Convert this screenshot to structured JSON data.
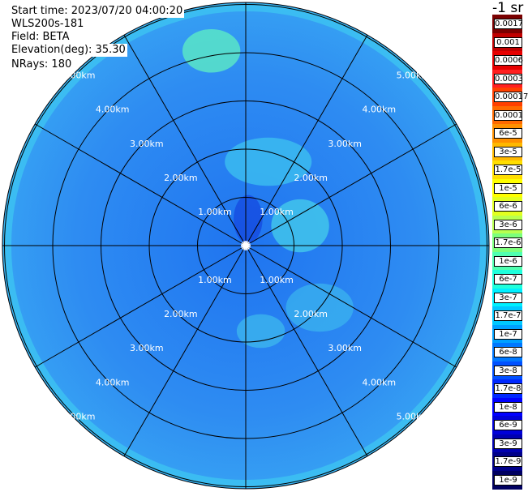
{
  "info": {
    "start_time": "Start time: 2023/07/20 04:00:20",
    "device": "WLS200s-181",
    "field": "Field: BETA",
    "elevation": "Elevation(deg): 35.30",
    "nrays": "NRays: 180"
  },
  "chart_data": {
    "type": "polar-ppi",
    "field": "BETA",
    "unit": "-1 sr",
    "elevation_deg": 35.3,
    "nrays": 180,
    "range_rings_km": [
      1,
      2,
      3,
      4,
      5
    ],
    "ring_labels": [
      "1.00km",
      "2.00km",
      "3.00km",
      "4.00km",
      "5.00km"
    ],
    "azimuth_spokes_deg": [
      0,
      30,
      60,
      90,
      120,
      150,
      180,
      210,
      240,
      270,
      300,
      330
    ],
    "max_range_km": 5.1,
    "background_value": "1.7e-7",
    "colorbar": {
      "labels": [
        "0.0017",
        "0.001",
        "0.0006",
        "0.0003",
        "0.00017",
        "0.0001",
        "6e-5",
        "3e-5",
        "1.7e-5",
        "1e-5",
        "6e-6",
        "3e-6",
        "1.7e-6",
        "1e-6",
        "6e-7",
        "3e-7",
        "1.7e-7",
        "1e-7",
        "6e-8",
        "3e-8",
        "1.7e-8",
        "1e-8",
        "6e-9",
        "3e-9",
        "1.7e-9",
        "1e-9"
      ],
      "colors": [
        "#7a0000",
        "#c00000",
        "#e60000",
        "#ff2020",
        "#ff4000",
        "#ff6a00",
        "#ff9000",
        "#ffb800",
        "#ffde00",
        "#ffff00",
        "#e2ff20",
        "#b8ff50",
        "#7cff7c",
        "#50ffb0",
        "#20ffdc",
        "#00f0ff",
        "#00c8ff",
        "#00a0ff",
        "#0078ff",
        "#0050ff",
        "#0028ff",
        "#0000ff",
        "#0000d8",
        "#0000b0",
        "#000088",
        "#000060"
      ]
    }
  }
}
